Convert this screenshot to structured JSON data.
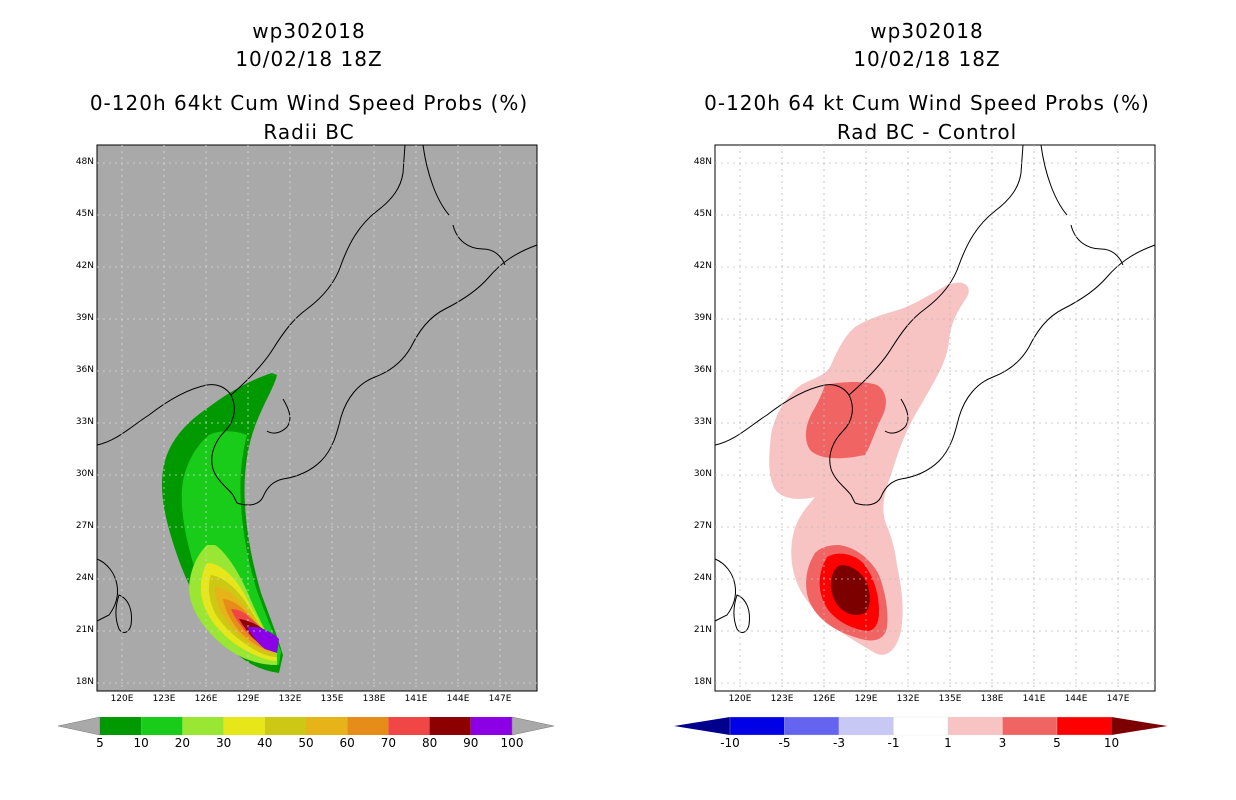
{
  "left": {
    "storm_id": "wp302018",
    "datetime": "10/02/18 18Z",
    "title": "0-120h 64kt Cum Wind Speed Probs (%)",
    "subtitle": "Radii BC",
    "background": "#a9a9a9",
    "colorbar_labels": [
      "5",
      "10",
      "20",
      "30",
      "40",
      "50",
      "60",
      "70",
      "80",
      "90",
      "100"
    ],
    "colorbar_colors": [
      "#009900",
      "#19cc19",
      "#99e633",
      "#e6e619",
      "#ccc814",
      "#e6b319",
      "#e68c19",
      "#f04646",
      "#8c0000",
      "#8c00e6"
    ],
    "extend_color": "#a9a9a9"
  },
  "right": {
    "storm_id": "wp302018",
    "datetime": "10/02/18 18Z",
    "title": "0-120h 64 kt Cum Wind Speed Probs (%)",
    "subtitle": "Rad BC - Control",
    "background": "#ffffff",
    "colorbar_labels": [
      "-10",
      "-5",
      "-3",
      "-1",
      "1",
      "3",
      "5",
      "10"
    ],
    "colorbar_colors": [
      "#0000e6",
      "#6464f0",
      "#c8c8f5",
      "#ffffff",
      "#f7c3c3",
      "#f06464",
      "#ff0000"
    ],
    "extend_low": "#00008c",
    "extend_high": "#7d0000"
  },
  "axes": {
    "lat_labels": [
      "48N",
      "45N",
      "42N",
      "39N",
      "36N",
      "33N",
      "30N",
      "27N",
      "24N",
      "21N",
      "18N"
    ],
    "lon_labels": [
      "120E",
      "123E",
      "126E",
      "129E",
      "132E",
      "135E",
      "138E",
      "141E",
      "144E",
      "147E"
    ]
  }
}
